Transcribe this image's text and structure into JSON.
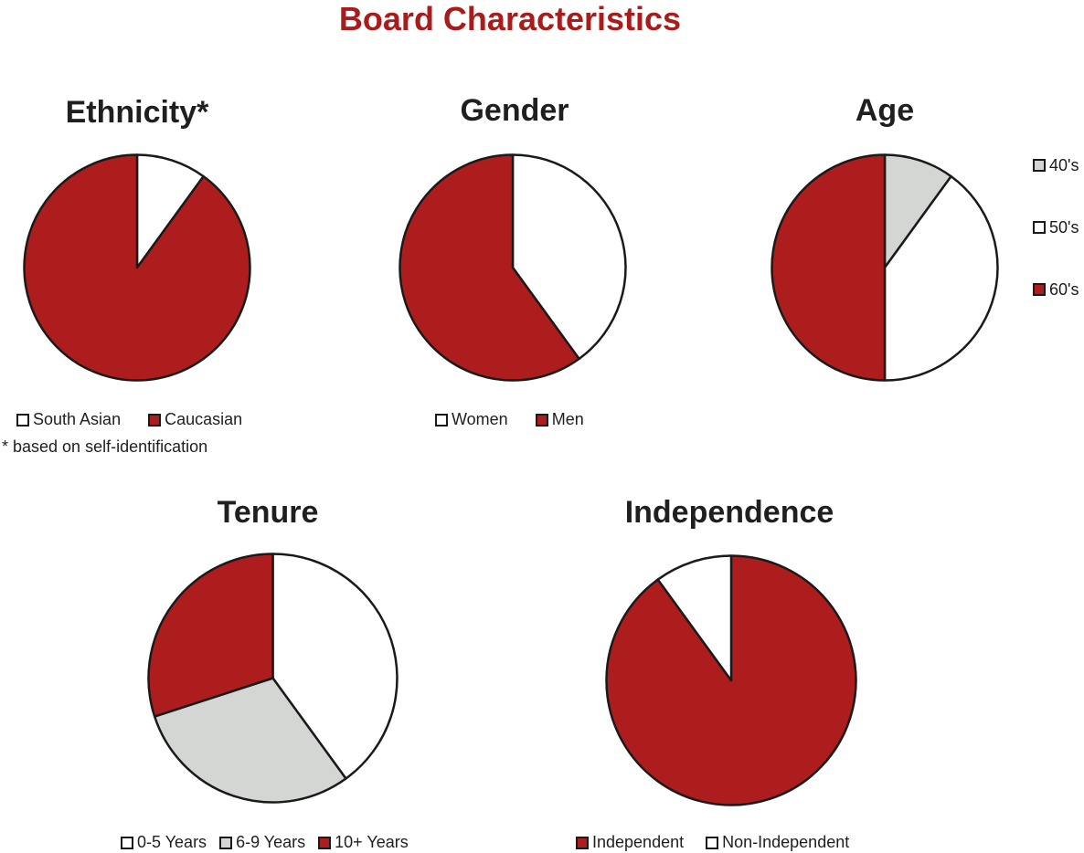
{
  "title": "Board Characteristics",
  "footnote": "* based on self-identification",
  "colors": {
    "red": "#ae1d1d",
    "white": "#ffffff",
    "grey": "#d4d6d4",
    "title_red": "#a81c1c",
    "outline": "#1a1a1a"
  },
  "chart_data": [
    {
      "type": "pie",
      "title": "Ethnicity*",
      "slices": [
        {
          "label": "South Asian",
          "value": 10,
          "color": "#ffffff"
        },
        {
          "label": "Caucasian",
          "value": 90,
          "color": "#ae1d1d"
        }
      ],
      "legend_position": "bottom"
    },
    {
      "type": "pie",
      "title": "Gender",
      "slices": [
        {
          "label": "Women",
          "value": 40,
          "color": "#ffffff"
        },
        {
          "label": "Men",
          "value": 60,
          "color": "#ae1d1d"
        }
      ],
      "legend_position": "bottom"
    },
    {
      "type": "pie",
      "title": "Age",
      "slices": [
        {
          "label": "40's",
          "value": 10,
          "color": "#d4d6d4"
        },
        {
          "label": "50's",
          "value": 40,
          "color": "#ffffff"
        },
        {
          "label": "60's",
          "value": 50,
          "color": "#ae1d1d"
        }
      ],
      "legend_position": "right"
    },
    {
      "type": "pie",
      "title": "Tenure",
      "slices": [
        {
          "label": "0-5 Years",
          "value": 40,
          "color": "#ffffff"
        },
        {
          "label": "6-9 Years",
          "value": 30,
          "color": "#d4d6d4"
        },
        {
          "label": "10+ Years",
          "value": 30,
          "color": "#ae1d1d"
        }
      ],
      "legend_position": "bottom"
    },
    {
      "type": "pie",
      "title": "Independence",
      "slices": [
        {
          "label": "Independent",
          "value": 90,
          "color": "#ae1d1d"
        },
        {
          "label": "Non-Independent",
          "value": 10,
          "color": "#ffffff"
        }
      ],
      "legend_position": "bottom"
    }
  ]
}
